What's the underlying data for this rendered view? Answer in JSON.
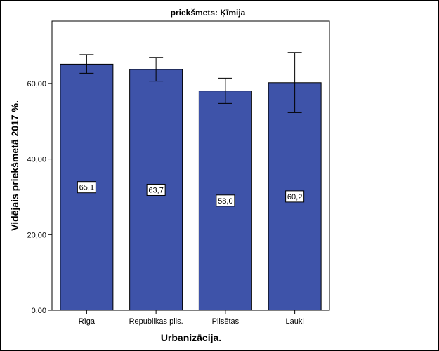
{
  "chart_data": {
    "type": "bar",
    "title": "priekšmets: Ķīmija",
    "xlabel": "Urbanizācija.",
    "ylabel": "Vidējais priekšmetā 2017 %.",
    "categories": [
      "Rīga",
      "Republikas pils.",
      "Pilsētas",
      "Lauki"
    ],
    "values": [
      65.1,
      63.7,
      58.0,
      60.2
    ],
    "value_labels": [
      "65,1",
      "63,7",
      "58,0",
      "60,2"
    ],
    "error_low": [
      62.7,
      60.6,
      54.7,
      52.3
    ],
    "error_high": [
      67.6,
      66.9,
      61.4,
      68.2
    ],
    "ylim": [
      0,
      76.5
    ],
    "yticks": [
      0,
      20,
      40,
      60
    ],
    "ytick_labels": [
      "0,00",
      "20,00",
      "40,00",
      "60,00"
    ],
    "bar_color": "#3E53A9",
    "grid": false,
    "legend": "none"
  }
}
